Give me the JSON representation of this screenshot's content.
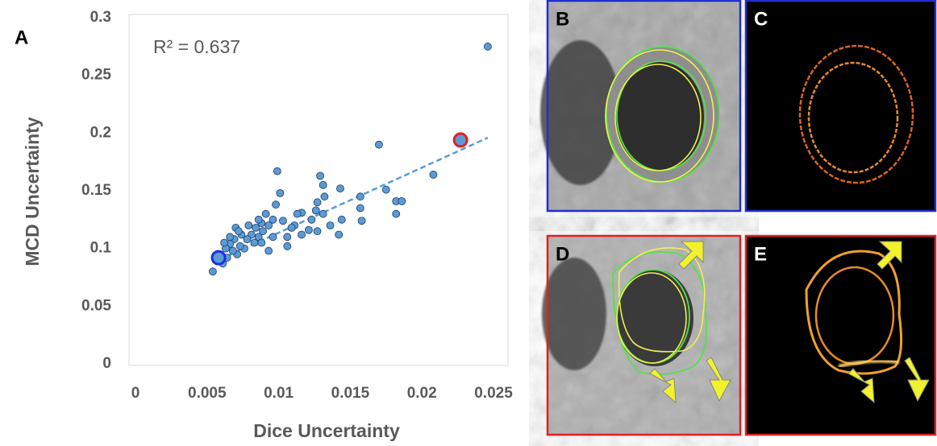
{
  "chart_data": {
    "type": "scatter",
    "figure_label": "A",
    "annotation": "R² = 0.637",
    "x_label": "Dice Uncertainty",
    "y_label": "MCD Uncertainty",
    "color": "#5b9bd5",
    "xlim": [
      0,
      0.025
    ],
    "ylim": [
      0,
      0.3
    ],
    "xticks": [
      0,
      0.005,
      0.01,
      0.015,
      0.02,
      0.025
    ],
    "yticks": [
      0,
      0.05,
      0.1,
      0.15,
      0.2,
      0.25,
      0.3
    ],
    "x": [
      0.0054,
      0.0246,
      0.0208,
      0.017,
      0.0182,
      0.0182,
      0.0186,
      0.0175,
      0.0158,
      0.0157,
      0.0157,
      0.0144,
      0.0142,
      0.0143,
      0.0132,
      0.0129,
      0.0131,
      0.0131,
      0.0127,
      0.0126,
      0.0123,
      0.0127,
      0.0121,
      0.0116,
      0.0113,
      0.0111,
      0.0109,
      0.0106,
      0.0103,
      0.0101,
      0.0099,
      0.0098,
      0.0096,
      0.0093,
      0.0091,
      0.0089,
      0.0088,
      0.0086,
      0.0084,
      0.0083,
      0.0081,
      0.0079,
      0.0078,
      0.0076,
      0.0074,
      0.0073,
      0.0071,
      0.007,
      0.0069,
      0.0068,
      0.0066,
      0.0064,
      0.0063,
      0.0061,
      0.0062,
      0.0093,
      0.0116,
      0.0136,
      0.0086,
      0.0096,
      0.0106,
      0.0066,
      0.0072,
      0.0088
    ],
    "y": [
      0.08,
      0.275,
      0.164,
      0.19,
      0.13,
      0.141,
      0.141,
      0.151,
      0.124,
      0.135,
      0.145,
      0.125,
      0.112,
      0.152,
      0.145,
      0.163,
      0.155,
      0.13,
      0.14,
      0.133,
      0.125,
      0.115,
      0.116,
      0.131,
      0.13,
      0.12,
      0.118,
      0.11,
      0.124,
      0.148,
      0.167,
      0.138,
      0.125,
      0.12,
      0.13,
      0.115,
      0.122,
      0.11,
      0.118,
      0.105,
      0.112,
      0.12,
      0.108,
      0.1,
      0.112,
      0.102,
      0.095,
      0.118,
      0.108,
      0.098,
      0.104,
      0.092,
      0.1,
      0.087,
      0.105,
      0.098,
      0.112,
      0.12,
      0.125,
      0.11,
      0.102,
      0.11,
      0.115,
      0.105
    ],
    "highlights": [
      {
        "x": 0.0058,
        "y": 0.092,
        "color": "#1a2ee6"
      },
      {
        "x": 0.0227,
        "y": 0.194,
        "color": "#e02020"
      }
    ],
    "trendline": {
      "x": [
        0.0058,
        0.0246
      ],
      "y": [
        0.09,
        0.196
      ],
      "color": "#5b9bd5"
    },
    "panels": [
      {
        "label": "B",
        "border": "#1f2fd0"
      },
      {
        "label": "C",
        "border": "#1f2fd0"
      },
      {
        "label": "D",
        "border": "#e02020"
      },
      {
        "label": "E",
        "border": "#e02020"
      }
    ]
  }
}
